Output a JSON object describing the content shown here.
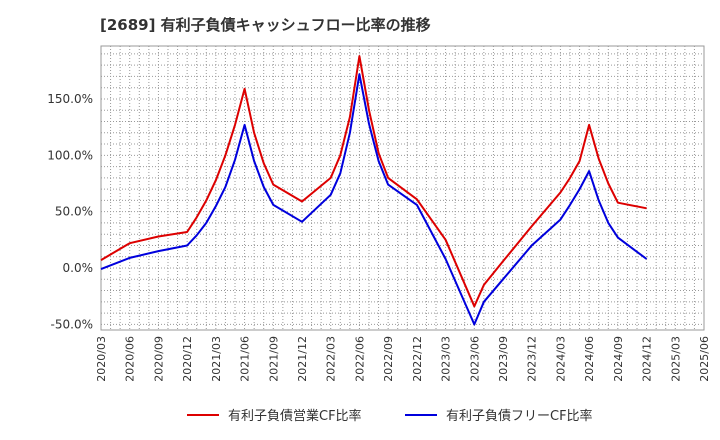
{
  "chart_data": {
    "type": "line",
    "title": "[2689]  有利子負債キャッシュフロー比率の推移",
    "xlabel": "",
    "ylabel": "",
    "ylim": [
      -55,
      197
    ],
    "grid": true,
    "legend_position": "bottom",
    "x_tick_labels": [
      "2020/03",
      "2020/06",
      "2020/09",
      "2020/12",
      "2021/03",
      "2021/06",
      "2021/09",
      "2021/12",
      "2022/03",
      "2022/06",
      "2022/09",
      "2022/12",
      "2023/03",
      "2023/06",
      "2023/09",
      "2023/12",
      "2024/03",
      "2024/06",
      "2024/09",
      "2024/12",
      "2025/03",
      "2025/06"
    ],
    "y_ticks": [
      150,
      100,
      50,
      0,
      -50
    ],
    "y_tick_labels": [
      "150.0%",
      "100.0%",
      "50.0%",
      "0.0%",
      "-50.0%"
    ],
    "series": [
      {
        "name": "有利子負債営業CF比率",
        "color": "#dd0000",
        "points": [
          [
            "2020/03",
            7
          ],
          [
            "2020/06",
            22
          ],
          [
            "2020/09",
            28
          ],
          [
            "2020/12",
            32
          ],
          [
            "2021/01",
            45
          ],
          [
            "2021/02",
            60
          ],
          [
            "2021/03",
            78
          ],
          [
            "2021/04",
            100
          ],
          [
            "2021/05",
            127
          ],
          [
            "2021/06",
            159
          ],
          [
            "2021/07",
            120
          ],
          [
            "2021/08",
            93
          ],
          [
            "2021/09",
            74
          ],
          [
            "2021/12",
            59
          ],
          [
            "2022/03",
            80
          ],
          [
            "2022/04",
            100
          ],
          [
            "2022/05",
            134
          ],
          [
            "2022/06",
            188
          ],
          [
            "2022/07",
            140
          ],
          [
            "2022/08",
            102
          ],
          [
            "2022/09",
            80
          ],
          [
            "2022/12",
            61
          ],
          [
            "2023/03",
            25
          ],
          [
            "2023/06",
            -34
          ],
          [
            "2023/07",
            -15
          ],
          [
            "2023/09",
            6
          ],
          [
            "2023/12",
            37
          ],
          [
            "2024/03",
            67
          ],
          [
            "2024/04",
            80
          ],
          [
            "2024/05",
            95
          ],
          [
            "2024/06",
            127
          ],
          [
            "2024/07",
            97
          ],
          [
            "2024/08",
            75
          ],
          [
            "2024/09",
            58
          ],
          [
            "2024/12",
            53
          ]
        ]
      },
      {
        "name": "有利子負債フリーCF比率",
        "color": "#0000dd",
        "points": [
          [
            "2020/03",
            -1
          ],
          [
            "2020/06",
            9
          ],
          [
            "2020/09",
            15
          ],
          [
            "2020/12",
            20
          ],
          [
            "2021/01",
            29
          ],
          [
            "2021/02",
            40
          ],
          [
            "2021/03",
            55
          ],
          [
            "2021/04",
            72
          ],
          [
            "2021/05",
            96
          ],
          [
            "2021/06",
            127
          ],
          [
            "2021/07",
            95
          ],
          [
            "2021/08",
            72
          ],
          [
            "2021/09",
            56
          ],
          [
            "2021/12",
            41
          ],
          [
            "2022/03",
            65
          ],
          [
            "2022/04",
            84
          ],
          [
            "2022/05",
            120
          ],
          [
            "2022/06",
            172
          ],
          [
            "2022/07",
            128
          ],
          [
            "2022/08",
            95
          ],
          [
            "2022/09",
            74
          ],
          [
            "2022/12",
            56
          ],
          [
            "2023/03",
            8
          ],
          [
            "2023/06",
            -50
          ],
          [
            "2023/07",
            -30
          ],
          [
            "2023/09",
            -10
          ],
          [
            "2023/12",
            20
          ],
          [
            "2024/03",
            43
          ],
          [
            "2024/04",
            56
          ],
          [
            "2024/05",
            70
          ],
          [
            "2024/06",
            86
          ],
          [
            "2024/07",
            60
          ],
          [
            "2024/08",
            40
          ],
          [
            "2024/09",
            27
          ],
          [
            "2024/12",
            8
          ]
        ]
      }
    ]
  }
}
